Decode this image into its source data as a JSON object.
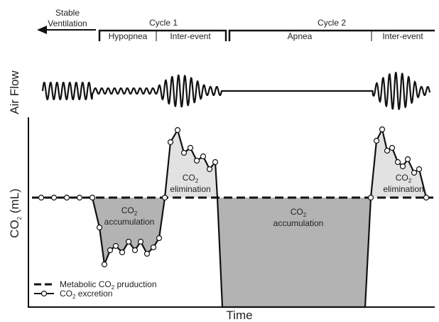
{
  "header": {
    "stable": [
      "Stable",
      "Ventilation"
    ],
    "cycles": [
      "Cycle 1",
      "Cycle 2"
    ],
    "phases": [
      "Hypopnea",
      "Inter-event",
      "Apnea",
      "Inter-event"
    ]
  },
  "axes": {
    "air_flow": "Air Flow",
    "y_label": {
      "pre": "CO",
      "sub": "2",
      "post": " (mL)"
    },
    "x_label": "Time"
  },
  "regions": [
    {
      "chem": "CO",
      "sub": "2",
      "word": "accumulation"
    },
    {
      "chem": "CO",
      "sub": "2",
      "word": "elimination"
    },
    {
      "chem": "CO",
      "sub": "2",
      "word": "accumulation"
    },
    {
      "chem": "CO",
      "sub": "2",
      "word": "elimination"
    }
  ],
  "legend": [
    {
      "pre": "Metabolic CO",
      "sub": "2",
      "post": " pruduction"
    },
    {
      "pre": "CO",
      "sub": "2",
      "post": " excretion"
    }
  ]
}
